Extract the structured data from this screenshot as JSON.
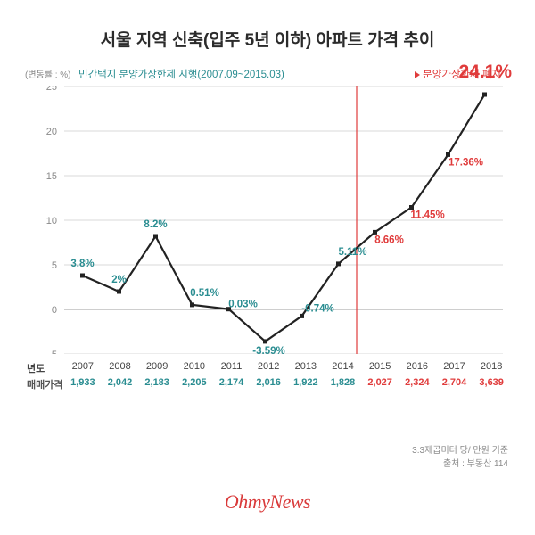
{
  "title": {
    "text": "서울 지역 신축(입주 5년 이하) 아파트 가격 추이",
    "fontsize": 19
  },
  "chart": {
    "type": "line",
    "yaxis": {
      "unit_label": "(변동률 : %)",
      "ylim": [
        -5,
        25
      ],
      "ticks": [
        -5,
        0,
        5,
        10,
        15,
        20,
        25
      ],
      "grid_color": "#d9d9d9",
      "zero_line_color": "#b0b0b0",
      "tick_fontsize": 11,
      "tick_color": "#8a8a8a"
    },
    "legend": {
      "left": {
        "text": "민간택지 분양가상한제 시행(2007.09~2015.03)",
        "color": "#2a8d91"
      },
      "right": {
        "text": "분양가상한제 폐지",
        "color": "#e03b3b"
      }
    },
    "years": [
      "2007",
      "2008",
      "2009",
      "2010",
      "2011",
      "2012",
      "2013",
      "2014",
      "2015",
      "2016",
      "2017",
      "2018"
    ],
    "values": [
      3.8,
      2.0,
      8.2,
      0.51,
      0.03,
      -3.59,
      -0.74,
      5.11,
      8.66,
      11.45,
      17.36,
      24.1
    ],
    "value_labels": [
      "3.8%",
      "2%",
      "8.2%",
      "0.51%",
      "0.03%",
      "-3.59%",
      "-0.74%",
      "5.11%",
      "8.66%",
      "11.45%",
      "17.36%",
      "24.1%"
    ],
    "value_label_colors": [
      "teal",
      "teal",
      "teal",
      "teal",
      "teal",
      "teal",
      "teal",
      "teal",
      "red",
      "red",
      "red",
      "red"
    ],
    "value_label_dy": [
      -10,
      -10,
      -10,
      -10,
      -2,
      14,
      -5,
      -10,
      12,
      12,
      12,
      -14
    ],
    "value_label_dx": [
      0,
      0,
      0,
      14,
      16,
      4,
      18,
      16,
      16,
      18,
      20,
      12
    ],
    "highlight_last": {
      "text": "24.1%",
      "fontsize": 21
    },
    "divider_after_index": 7,
    "line_color": "#222222",
    "line_width": 2.2,
    "marker": {
      "shape": "square",
      "size": 5,
      "color": "#222222"
    },
    "background_color": "#ffffff"
  },
  "table": {
    "year_header": "년도",
    "price_header": "매매가격",
    "prices": [
      "1,933",
      "2,042",
      "2,183",
      "2,205",
      "2,174",
      "2,016",
      "1,922",
      "1,828",
      "2,027",
      "2,324",
      "2,704",
      "3,639"
    ],
    "price_colors": [
      "teal",
      "teal",
      "teal",
      "teal",
      "teal",
      "teal",
      "teal",
      "teal",
      "red",
      "red",
      "red",
      "red"
    ]
  },
  "footnotes": {
    "line1": "3.3제곱미터 당/ 만원 기준",
    "line2": "출처 : 부동산 114"
  },
  "brand": "OhmyNews"
}
